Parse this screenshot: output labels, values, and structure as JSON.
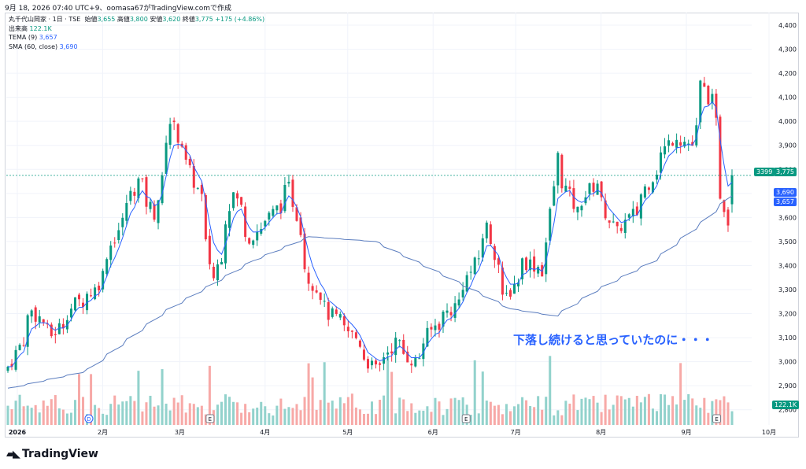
{
  "header": {
    "timestamp_line": "9月 18, 2026 07:40 UTC+9、oomasa67がTradingView.comで作成"
  },
  "legend": {
    "symbol": "丸千代山岡家 · 1日 · TSE",
    "open_label": "始値",
    "open_value": "3,655",
    "high_label": "高値",
    "high_value": "3,800",
    "low_label": "安値",
    "low_value": "3,620",
    "close_label": "終値",
    "close_value": "3,775",
    "change": "+175 (+4.86%)",
    "volume_label": "出来高",
    "volume_value": "122.1K",
    "tema_label": "TEMA (9)",
    "tema_value": "3,657",
    "sma_label": "SMA (60, close)",
    "sma_value": "3,690"
  },
  "price_tags": {
    "last_price_left": "3399",
    "last_price": "3,775",
    "sma": "3,690",
    "tema": "3,657",
    "volume": "122.1K"
  },
  "annotation": "下落し続けると思っていたのに・・・",
  "brand": "TradingView",
  "colors": {
    "up": "#089981",
    "down": "#f23645",
    "up_volume": "#92d2cc",
    "down_volume": "#f7a9a7",
    "sma": "#5b7dbf",
    "tema": "#2962ff",
    "annotation": "#2962ff"
  },
  "chart_data": {
    "type": "candlestick",
    "title": "丸千代山岡家 · 1日 · TSE",
    "yaxis": {
      "range": [
        2750,
        4400
      ],
      "ticks": [
        "2,800",
        "2,900",
        "3,000",
        "3,100",
        "3,200",
        "3,300",
        "3,400",
        "3,500",
        "3,600",
        "3,700",
        "3,800",
        "3,900",
        "4,000",
        "4,100",
        "4,200",
        "4,300",
        "4,400"
      ]
    },
    "xaxis": {
      "ticks": [
        "2026",
        "2月",
        "3月",
        "4月",
        "5月",
        "6月",
        "7月",
        "8月",
        "9月",
        "10月"
      ]
    },
    "events": [
      {
        "label": "D",
        "month": "2月"
      },
      {
        "label": "E",
        "month": "3月"
      },
      {
        "label": "E",
        "month": "6月"
      },
      {
        "label": "E",
        "month": "9月"
      }
    ],
    "price_path": [
      {
        "date": "2026-01-05",
        "close": 2980
      },
      {
        "date": "2026-01-13",
        "close": 3210
      },
      {
        "date": "2026-01-20",
        "close": 3110
      },
      {
        "date": "2026-01-28",
        "close": 3240
      },
      {
        "date": "2026-02-04",
        "close": 3300
      },
      {
        "date": "2026-02-12",
        "close": 3550
      },
      {
        "date": "2026-02-19",
        "close": 3750
      },
      {
        "date": "2026-02-25",
        "close": 3620
      },
      {
        "date": "2026-03-03",
        "close": 4000
      },
      {
        "date": "2026-03-09",
        "close": 3820
      },
      {
        "date": "2026-03-13",
        "close": 3680
      },
      {
        "date": "2026-03-18",
        "close": 3350
      },
      {
        "date": "2026-03-25",
        "close": 3700
      },
      {
        "date": "2026-03-31",
        "close": 3520
      },
      {
        "date": "2026-04-07",
        "close": 3600
      },
      {
        "date": "2026-04-14",
        "close": 3720
      },
      {
        "date": "2026-04-21",
        "close": 3350
      },
      {
        "date": "2026-04-28",
        "close": 3200
      },
      {
        "date": "2026-05-07",
        "close": 3100
      },
      {
        "date": "2026-05-14",
        "close": 2960
      },
      {
        "date": "2026-05-21",
        "close": 3080
      },
      {
        "date": "2026-05-28",
        "close": 3000
      },
      {
        "date": "2026-06-04",
        "close": 3150
      },
      {
        "date": "2026-06-11",
        "close": 3230
      },
      {
        "date": "2026-06-18",
        "close": 3400
      },
      {
        "date": "2026-06-23",
        "close": 3560
      },
      {
        "date": "2026-06-29",
        "close": 3250
      },
      {
        "date": "2026-07-06",
        "close": 3420
      },
      {
        "date": "2026-07-13",
        "close": 3380
      },
      {
        "date": "2026-07-17",
        "close": 3850
      },
      {
        "date": "2026-07-24",
        "close": 3620
      },
      {
        "date": "2026-07-31",
        "close": 3750
      },
      {
        "date": "2026-08-07",
        "close": 3530
      },
      {
        "date": "2026-08-14",
        "close": 3620
      },
      {
        "date": "2026-08-21",
        "close": 3800
      },
      {
        "date": "2026-08-28",
        "close": 3950
      },
      {
        "date": "2026-09-03",
        "close": 3900
      },
      {
        "date": "2026-09-07",
        "close": 4150
      },
      {
        "date": "2026-09-10",
        "close": 4080
      },
      {
        "date": "2026-09-14",
        "close": 3700
      },
      {
        "date": "2026-09-16",
        "close": 3600
      },
      {
        "date": "2026-09-17",
        "close": 3775
      }
    ],
    "last_candle": {
      "open": 3655,
      "high": 3800,
      "low": 3620,
      "close": 3775,
      "volume": "122.1K"
    },
    "series": [
      {
        "name": "TEMA (9)",
        "last": 3657
      },
      {
        "name": "SMA (60, close)",
        "last": 3690,
        "path": [
          {
            "date": "2026-01-05",
            "value": 2890
          },
          {
            "date": "2026-02-01",
            "value": 2960
          },
          {
            "date": "2026-03-01",
            "value": 3210
          },
          {
            "date": "2026-04-01",
            "value": 3420
          },
          {
            "date": "2026-04-21",
            "value": 3520
          },
          {
            "date": "2026-05-14",
            "value": 3500
          },
          {
            "date": "2026-06-04",
            "value": 3380
          },
          {
            "date": "2026-07-01",
            "value": 3220
          },
          {
            "date": "2026-07-17",
            "value": 3190
          },
          {
            "date": "2026-08-01",
            "value": 3300
          },
          {
            "date": "2026-08-21",
            "value": 3420
          },
          {
            "date": "2026-09-07",
            "value": 3580
          },
          {
            "date": "2026-09-17",
            "value": 3690
          }
        ]
      }
    ]
  }
}
